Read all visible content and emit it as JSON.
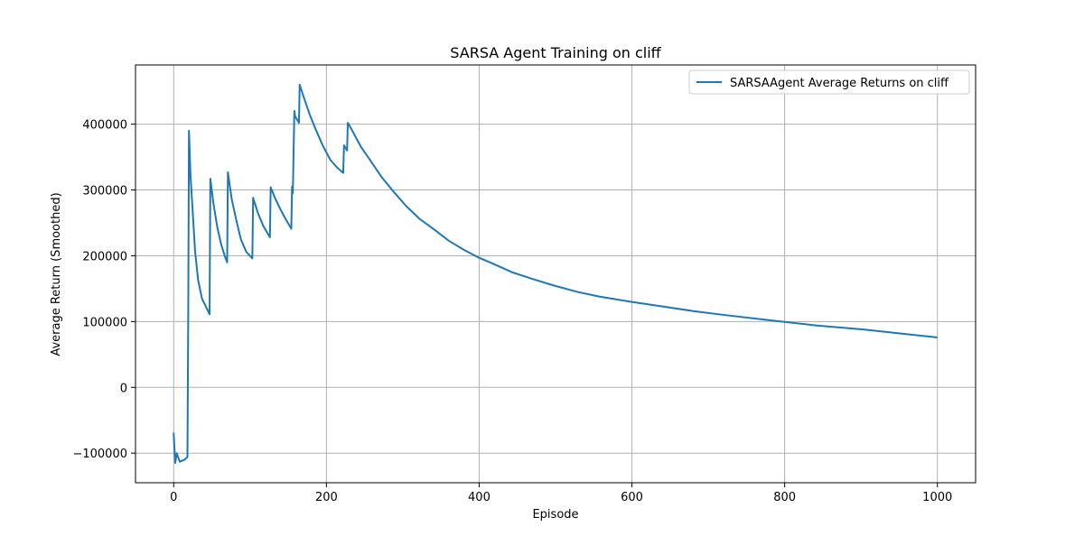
{
  "chart_data": {
    "type": "line",
    "title": "SARSA Agent Training on cliff",
    "xlabel": "Episode",
    "ylabel": "Average Return (Smoothed)",
    "xlim": [
      -50,
      1050
    ],
    "ylim": [
      -145000,
      490000
    ],
    "xticks": [
      0,
      200,
      400,
      600,
      800,
      1000
    ],
    "xtick_labels": [
      "0",
      "200",
      "400",
      "600",
      "800",
      "1000"
    ],
    "yticks": [
      -100000,
      0,
      100000,
      200000,
      300000,
      400000
    ],
    "ytick_labels": [
      "−100000",
      "0",
      "100000",
      "200000",
      "300000",
      "400000"
    ],
    "grid": true,
    "legend": {
      "position": "upper right"
    },
    "colors": {
      "series": "#1f77b4",
      "grid": "#b0b0b0",
      "axes": "#000000"
    },
    "series": [
      {
        "name": "SARSAAgent Average Returns on cliff",
        "x": [
          0,
          2,
          4,
          6,
          8,
          10,
          14,
          18,
          19,
          20,
          22,
          25,
          28,
          32,
          37,
          42,
          47,
          48,
          52,
          57,
          62,
          67,
          70,
          71,
          76,
          82,
          88,
          95,
          103,
          104,
          110,
          117,
          126,
          127,
          133,
          140,
          147,
          154,
          155,
          156,
          158,
          159,
          164,
          165,
          170,
          178,
          186,
          195,
          205,
          214,
          222,
          223,
          227,
          228,
          232,
          245,
          258,
          272,
          289,
          304,
          322,
          341,
          360,
          380,
          398,
          420,
          443,
          469,
          497,
          529,
          557,
          599,
          640,
          680,
          721,
          780,
          842,
          903,
          999
        ],
        "values": [
          -70000,
          -115000,
          -100000,
          -107000,
          -113000,
          -112000,
          -110000,
          -106000,
          100000,
          390000,
          323000,
          265000,
          207000,
          163000,
          135000,
          123000,
          111000,
          317000,
          280000,
          244000,
          218000,
          199000,
          190000,
          327000,
          286000,
          254000,
          225000,
          206000,
          196000,
          288000,
          266000,
          246000,
          228000,
          304000,
          287000,
          270000,
          255000,
          241000,
          305000,
          295000,
          420000,
          412000,
          402000,
          460000,
          442000,
          415000,
          392000,
          368000,
          346000,
          334000,
          326000,
          368000,
          360000,
          402000,
          394000,
          366000,
          344000,
          320000,
          296000,
          276000,
          256000,
          240000,
          223000,
          209000,
          198000,
          187000,
          175000,
          165000,
          155000,
          145000,
          138000,
          130000,
          123000,
          116000,
          110000,
          102000,
          94000,
          88000,
          76000
        ]
      }
    ]
  }
}
